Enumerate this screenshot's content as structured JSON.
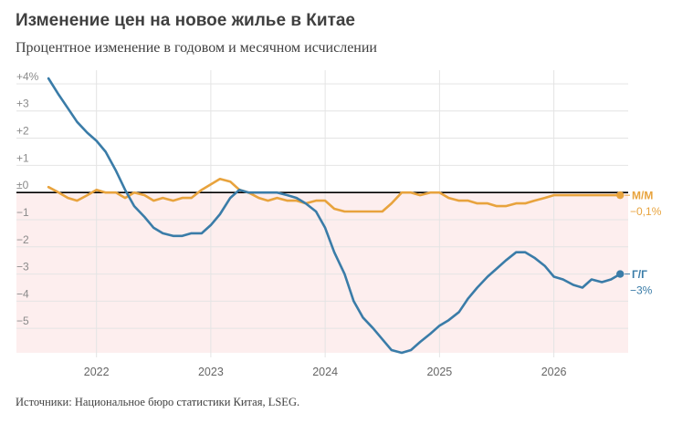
{
  "title": "Изменение цен на новое жилье в Китае",
  "subtitle": "Процентное изменение в годовом и месячном исчислении",
  "source": "Источники: Национальное бюро статистики Китая, LSEG.",
  "chart_data": {
    "type": "line",
    "title": "Изменение цен на новое жилье в Китае",
    "subtitle": "Процентное изменение в годовом и месячном исчислении",
    "xlabel": "",
    "ylabel": "",
    "ylim": [
      -5.9,
      4.3
    ],
    "xlim": [
      2021.3,
      2026.65
    ],
    "y_ticks": [
      {
        "value": 4,
        "label": "+4%"
      },
      {
        "value": 3,
        "label": "+3"
      },
      {
        "value": 2,
        "label": "+2"
      },
      {
        "value": 1,
        "label": "+1"
      },
      {
        "value": 0,
        "label": "±0"
      },
      {
        "value": -1,
        "label": "−1"
      },
      {
        "value": -2,
        "label": "−2"
      },
      {
        "value": -3,
        "label": "−3"
      },
      {
        "value": -4,
        "label": "−4"
      },
      {
        "value": -5,
        "label": "−5"
      }
    ],
    "x_ticks": [
      {
        "value": 2022,
        "label": "2022"
      },
      {
        "value": 2023,
        "label": "2023"
      },
      {
        "value": 2024,
        "label": "2024"
      },
      {
        "value": 2025,
        "label": "2025"
      },
      {
        "value": 2026,
        "label": "2026"
      }
    ],
    "negative_region_color": "#fdeeee",
    "zero_line_color": "#000000",
    "grid": true,
    "series": [
      {
        "name": "Г/Г",
        "last_value_label": "−3%",
        "color": "#3a7ca8",
        "x": [
          2021.58,
          2021.67,
          2021.75,
          2021.83,
          2021.92,
          2022.0,
          2022.08,
          2022.17,
          2022.25,
          2022.33,
          2022.42,
          2022.5,
          2022.58,
          2022.67,
          2022.75,
          2022.83,
          2022.92,
          2023.0,
          2023.08,
          2023.17,
          2023.25,
          2023.33,
          2023.42,
          2023.5,
          2023.58,
          2023.67,
          2023.75,
          2023.83,
          2023.92,
          2024.0,
          2024.08,
          2024.17,
          2024.25,
          2024.33,
          2024.42,
          2024.5,
          2024.58,
          2024.67,
          2024.75,
          2024.83,
          2024.92,
          2025.0,
          2025.08,
          2025.17,
          2025.25,
          2025.33,
          2025.42,
          2025.5,
          2025.58,
          2025.67,
          2025.75,
          2025.83,
          2025.92,
          2026.0,
          2026.08,
          2026.17,
          2026.25,
          2026.33,
          2026.42,
          2026.5,
          2026.58
        ],
        "y": [
          4.2,
          3.6,
          3.1,
          2.6,
          2.2,
          1.9,
          1.5,
          0.8,
          0.1,
          -0.5,
          -0.9,
          -1.3,
          -1.5,
          -1.6,
          -1.6,
          -1.5,
          -1.5,
          -1.2,
          -0.8,
          -0.2,
          0.1,
          0.0,
          0.0,
          0.0,
          0.0,
          -0.1,
          -0.2,
          -0.4,
          -0.7,
          -1.3,
          -2.2,
          -3.0,
          -4.0,
          -4.6,
          -5.0,
          -5.4,
          -5.8,
          -5.9,
          -5.8,
          -5.5,
          -5.2,
          -4.9,
          -4.7,
          -4.4,
          -3.9,
          -3.5,
          -3.1,
          -2.8,
          -2.5,
          -2.2,
          -2.2,
          -2.4,
          -2.7,
          -3.1,
          -3.2,
          -3.4,
          -3.5,
          -3.2,
          -3.3,
          -3.2,
          -3.0
        ]
      },
      {
        "name": "М/М",
        "last_value_label": "−0,1%",
        "color": "#e8a33d",
        "x": [
          2021.58,
          2021.67,
          2021.75,
          2021.83,
          2021.92,
          2022.0,
          2022.08,
          2022.17,
          2022.25,
          2022.33,
          2022.42,
          2022.5,
          2022.58,
          2022.67,
          2022.75,
          2022.83,
          2022.92,
          2023.0,
          2023.08,
          2023.17,
          2023.25,
          2023.33,
          2023.42,
          2023.5,
          2023.58,
          2023.67,
          2023.75,
          2023.83,
          2023.92,
          2024.0,
          2024.08,
          2024.17,
          2024.25,
          2024.33,
          2024.42,
          2024.5,
          2024.58,
          2024.67,
          2024.75,
          2024.83,
          2024.92,
          2025.0,
          2025.08,
          2025.17,
          2025.25,
          2025.33,
          2025.42,
          2025.5,
          2025.58,
          2025.67,
          2025.75,
          2025.83,
          2025.92,
          2026.0,
          2026.08,
          2026.17,
          2026.25,
          2026.33,
          2026.42,
          2026.5,
          2026.58
        ],
        "y": [
          0.2,
          0.0,
          -0.2,
          -0.3,
          -0.1,
          0.1,
          0.0,
          0.0,
          -0.2,
          0.0,
          -0.1,
          -0.3,
          -0.2,
          -0.3,
          -0.2,
          -0.2,
          0.1,
          0.3,
          0.5,
          0.4,
          0.1,
          0.0,
          -0.2,
          -0.3,
          -0.2,
          -0.3,
          -0.3,
          -0.4,
          -0.3,
          -0.3,
          -0.6,
          -0.7,
          -0.7,
          -0.7,
          -0.7,
          -0.7,
          -0.4,
          0.0,
          0.0,
          -0.1,
          0.0,
          0.0,
          -0.2,
          -0.3,
          -0.3,
          -0.4,
          -0.4,
          -0.5,
          -0.5,
          -0.4,
          -0.4,
          -0.3,
          -0.2,
          -0.1,
          -0.1,
          -0.1,
          -0.1,
          -0.1,
          -0.1,
          -0.1,
          -0.1
        ]
      }
    ]
  }
}
